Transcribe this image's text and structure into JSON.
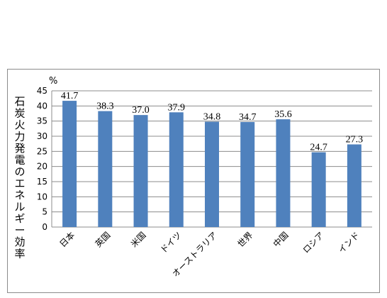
{
  "chart_data": {
    "type": "bar",
    "categories": [
      "日本",
      "英国",
      "米国",
      "ドイツ",
      "オーストラリア",
      "世界",
      "中国",
      "ロシア",
      "インド"
    ],
    "values": [
      41.7,
      38.3,
      37.0,
      37.9,
      34.8,
      34.7,
      35.6,
      24.7,
      27.3
    ],
    "data_labels": [
      "41.7",
      "38.3",
      "37.0",
      "37.9",
      "34.8",
      "34.7",
      "35.6",
      "24.7",
      "27.3"
    ],
    "ylabel": "石炭火力発電のエネルギー効率",
    "unit": "%",
    "ylim": [
      0,
      45
    ],
    "yticks": [
      0,
      5,
      10,
      15,
      20,
      25,
      30,
      35,
      40,
      45
    ],
    "grid": true,
    "bar_color": "#4f81bd",
    "grid_color": "#8c8c8c"
  }
}
